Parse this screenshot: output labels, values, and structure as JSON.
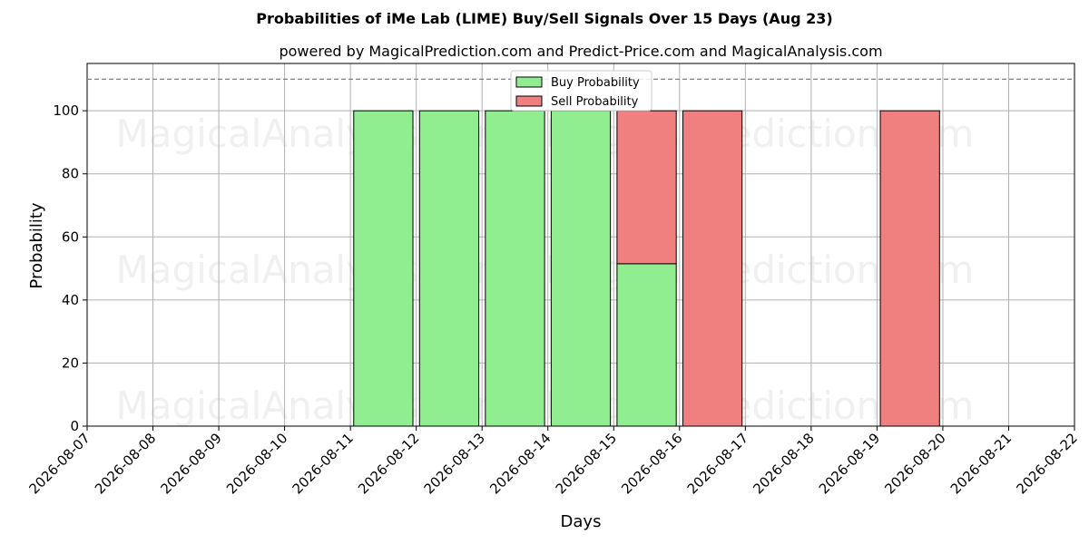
{
  "chart_data": {
    "type": "bar",
    "stacked": true,
    "title": "Probabilities of iMe Lab (LIME) Buy/Sell Signals Over 15 Days (Aug 23)",
    "subtitle": "powered by MagicalPrediction.com and Predict-Price.com and MagicalAnalysis.com",
    "xlabel": "Days",
    "ylabel": "Probability",
    "ylim": [
      0,
      115
    ],
    "yticks": [
      0,
      20,
      40,
      60,
      80,
      100
    ],
    "reference_line": 110,
    "grid": true,
    "legend_placement": "top-center",
    "x_ticks": [
      "2026-08-07",
      "2026-08-08",
      "2026-08-09",
      "2026-08-10",
      "2026-08-11",
      "2026-08-12",
      "2026-08-13",
      "2026-08-14",
      "2026-08-15",
      "2026-08-16",
      "2026-08-17",
      "2026-08-18",
      "2026-08-19",
      "2026-08-20",
      "2026-08-21",
      "2026-08-22"
    ],
    "categories": [
      "2026-08-11",
      "2026-08-12",
      "2026-08-13",
      "2026-08-14",
      "2026-08-15",
      "2026-08-16",
      "2026-08-19"
    ],
    "series": [
      {
        "name": "Buy Probability",
        "color": "#90ee90",
        "values": [
          100,
          100,
          100,
          100,
          51.5,
          0,
          0
        ]
      },
      {
        "name": "Sell Probability",
        "color": "#f08080",
        "values": [
          0,
          0,
          0,
          0,
          48.5,
          100,
          100
        ]
      }
    ],
    "watermarks": [
      "MagicalAnalysis.com",
      "MagicalPrediction.com"
    ]
  }
}
